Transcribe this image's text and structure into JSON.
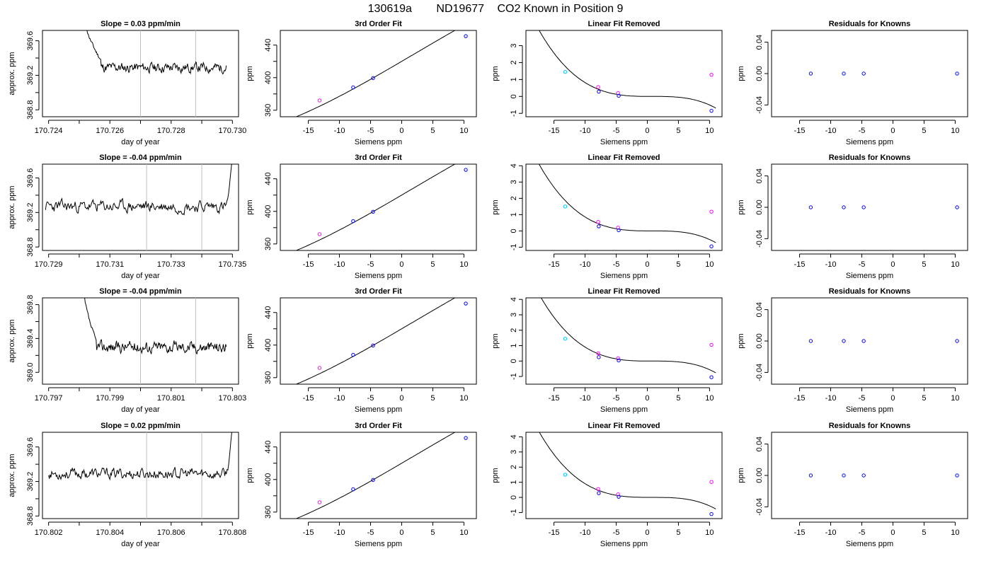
{
  "figure_title": {
    "run": "130619a",
    "tank": "ND19677",
    "label": "CO2 Known in Position  9"
  },
  "colors": {
    "line": "#000000",
    "grid_vline": "#bebebe",
    "point_blue": "#0000ff",
    "point_magenta": "#ff00ff",
    "point_cyan": "#00bfff"
  },
  "chart_data": [
    {
      "type": "line",
      "title": "Slope =  0.03  ppm/min",
      "xlabel": "day of year",
      "ylabel": "approx. ppm",
      "xlim": [
        170.7238,
        170.7302
      ],
      "ylim": [
        368.72,
        369.72
      ],
      "xticks": [
        170.724,
        170.725,
        170.726,
        170.727,
        170.728,
        170.729,
        170.73
      ],
      "xtick_labels": [
        "170.724",
        "",
        "170.726",
        "",
        "170.728",
        "",
        "170.730"
      ],
      "yticks": [
        368.8,
        369.0,
        369.2,
        369.4,
        369.6
      ],
      "ytick_labels": [
        "368.8",
        "",
        "369.2",
        "",
        "369.6"
      ],
      "vlines": [
        170.727,
        170.7288
      ],
      "series": [
        {
          "start": 170.7252,
          "end": 170.7298,
          "lead_from": 369.85,
          "lead_to": 369.38,
          "lead_frac": 0.11,
          "base": 369.29,
          "noise": 0.045,
          "seed": 11,
          "tail": 0
        }
      ]
    },
    {
      "type": "line",
      "title": "3rd Order Fit",
      "xlabel": "Siemens ppm",
      "ylabel": "ppm",
      "xlim": [
        -19.5,
        12.0
      ],
      "ylim": [
        352,
        458
      ],
      "xticks": [
        -15,
        -10,
        -5,
        0,
        5,
        10
      ],
      "xtick_labels": [
        "-15",
        "-10",
        "-5",
        "0",
        "5",
        "10"
      ],
      "yticks": [
        360,
        380,
        400,
        420,
        440
      ],
      "ytick_labels": [
        "360",
        "",
        "400",
        "",
        "440"
      ],
      "curve": {
        "from": -18,
        "to": 11,
        "coeffs": [
          420.0,
          4.48,
          0.007,
          -0.0012
        ]
      },
      "points": [
        {
          "x": -13.2,
          "y": 372.0,
          "color": "point_magenta"
        },
        {
          "x": -7.8,
          "y": 388.0,
          "color": "point_blue"
        },
        {
          "x": -4.6,
          "y": 399.5,
          "color": "point_blue"
        },
        {
          "x": 10.3,
          "y": 451.0,
          "color": "point_blue"
        }
      ]
    },
    {
      "type": "scatter",
      "title": "Linear Fit Removed",
      "xlabel": "Siemens ppm",
      "ylabel": "ppm",
      "xlim": [
        -19.5,
        12.0
      ],
      "ylim": [
        -1.2,
        3.9
      ],
      "xticks": [
        -15,
        -10,
        -5,
        0,
        5,
        10
      ],
      "xtick_labels": [
        "-15",
        "-10",
        "-5",
        "0",
        "5",
        "10"
      ],
      "yticks": [
        -1,
        0,
        1,
        2,
        3
      ],
      "ytick_labels": [
        "-1",
        "0",
        "1",
        "2",
        "3"
      ],
      "curve": {
        "from": -18,
        "to": 11,
        "coeffs": [
          0.0,
          0.0,
          0.0,
          -0.00065
        ],
        "shift": 2.3,
        "scale": 1.0
      },
      "points": [
        {
          "x": -13.2,
          "y": 1.45,
          "color": "point_cyan"
        },
        {
          "x": -7.9,
          "y": 0.55,
          "color": "point_magenta"
        },
        {
          "x": -7.8,
          "y": 0.28,
          "color": "point_blue"
        },
        {
          "x": -4.7,
          "y": 0.2,
          "color": "point_magenta"
        },
        {
          "x": -4.6,
          "y": 0.04,
          "color": "point_blue"
        },
        {
          "x": 10.3,
          "y": 1.28,
          "color": "point_magenta"
        },
        {
          "x": 10.3,
          "y": -0.85,
          "color": "point_blue"
        }
      ]
    },
    {
      "type": "scatter",
      "title": "Residuals for Knowns",
      "xlabel": "Siemens ppm",
      "ylabel": "ppm",
      "xlim": [
        -19.5,
        12.0
      ],
      "ylim": [
        -0.055,
        0.055
      ],
      "xticks": [
        -15,
        -10,
        -5,
        0,
        5,
        10
      ],
      "xtick_labels": [
        "-15",
        "-10",
        "-5",
        "0",
        "5",
        "10"
      ],
      "yticks": [
        -0.04,
        0.0,
        0.04
      ],
      "ytick_labels": [
        "-0.04",
        "0.00",
        "0.04"
      ],
      "points": [
        {
          "x": -13.2,
          "y": 0.0,
          "color": "point_blue"
        },
        {
          "x": -7.9,
          "y": 0.0,
          "color": "point_blue"
        },
        {
          "x": -4.7,
          "y": 0.0,
          "color": "point_blue"
        },
        {
          "x": 10.3,
          "y": 0.0,
          "color": "point_blue"
        }
      ]
    },
    {
      "type": "line",
      "title": "Slope =  -0.04  ppm/min",
      "xlabel": "day of year",
      "ylabel": "approx. ppm",
      "xlim": [
        170.7288,
        170.7352
      ],
      "ylim": [
        368.76,
        369.76
      ],
      "xticks": [
        170.729,
        170.73,
        170.731,
        170.732,
        170.733,
        170.734,
        170.735
      ],
      "xtick_labels": [
        "170.729",
        "",
        "170.731",
        "",
        "170.733",
        "",
        "170.735"
      ],
      "yticks": [
        368.8,
        369.0,
        369.2,
        369.4,
        369.6
      ],
      "ytick_labels": [
        "368.8",
        "",
        "369.2",
        "",
        "369.6"
      ],
      "vlines": [
        170.7322,
        170.734
      ],
      "series": [
        {
          "start": 170.7289,
          "end": 170.735,
          "lead_from": 369.29,
          "lead_to": 369.29,
          "lead_frac": 0,
          "base": 369.27,
          "noise": 0.055,
          "seed": 23,
          "tail": 369.85
        }
      ]
    },
    {
      "type": "line",
      "title": "3rd Order Fit",
      "xlabel": "Siemens ppm",
      "ylabel": "ppm",
      "xlim": [
        -19.5,
        12.0
      ],
      "ylim": [
        352,
        458
      ],
      "xticks": [
        -15,
        -10,
        -5,
        0,
        5,
        10
      ],
      "xtick_labels": [
        "-15",
        "-10",
        "-5",
        "0",
        "5",
        "10"
      ],
      "yticks": [
        360,
        380,
        400,
        420,
        440
      ],
      "ytick_labels": [
        "360",
        "",
        "400",
        "",
        "440"
      ],
      "curve": {
        "from": -18,
        "to": 11,
        "coeffs": [
          420.0,
          4.48,
          0.007,
          -0.0012
        ]
      },
      "points": [
        {
          "x": -13.2,
          "y": 372.0,
          "color": "point_magenta"
        },
        {
          "x": -7.8,
          "y": 388.0,
          "color": "point_blue"
        },
        {
          "x": -4.6,
          "y": 399.5,
          "color": "point_blue"
        },
        {
          "x": 10.3,
          "y": 451.0,
          "color": "point_blue"
        }
      ]
    },
    {
      "type": "scatter",
      "title": "Linear Fit Removed",
      "xlabel": "Siemens ppm",
      "ylabel": "ppm",
      "xlim": [
        -19.5,
        12.0
      ],
      "ylim": [
        -1.2,
        4.1
      ],
      "xticks": [
        -15,
        -10,
        -5,
        0,
        5,
        10
      ],
      "xtick_labels": [
        "-15",
        "-10",
        "-5",
        "0",
        "5",
        "10"
      ],
      "yticks": [
        -1,
        0,
        1,
        2,
        3,
        4
      ],
      "ytick_labels": [
        "-1",
        "0",
        "1",
        "2",
        "3",
        "4"
      ],
      "curve": {
        "from": -18,
        "to": 11,
        "coeffs": [
          0.0,
          0.0,
          0.0,
          -0.00068
        ],
        "shift": 2.3,
        "scale": 1.0
      },
      "points": [
        {
          "x": -13.2,
          "y": 1.5,
          "color": "point_cyan"
        },
        {
          "x": -7.9,
          "y": 0.55,
          "color": "point_magenta"
        },
        {
          "x": -7.8,
          "y": 0.28,
          "color": "point_blue"
        },
        {
          "x": -4.7,
          "y": 0.2,
          "color": "point_magenta"
        },
        {
          "x": -4.6,
          "y": 0.04,
          "color": "point_blue"
        },
        {
          "x": 10.3,
          "y": 1.18,
          "color": "point_magenta"
        },
        {
          "x": 10.3,
          "y": -0.95,
          "color": "point_blue"
        }
      ]
    },
    {
      "type": "scatter",
      "title": "Residuals for Knowns",
      "xlabel": "Siemens ppm",
      "ylabel": "ppm",
      "xlim": [
        -19.5,
        12.0
      ],
      "ylim": [
        -0.055,
        0.055
      ],
      "xticks": [
        -15,
        -10,
        -5,
        0,
        5,
        10
      ],
      "xtick_labels": [
        "-15",
        "-10",
        "-5",
        "0",
        "5",
        "10"
      ],
      "yticks": [
        -0.04,
        0.0,
        0.04
      ],
      "ytick_labels": [
        "-0.04",
        "0.00",
        "0.04"
      ],
      "points": [
        {
          "x": -13.2,
          "y": 0.0,
          "color": "point_blue"
        },
        {
          "x": -7.9,
          "y": 0.0,
          "color": "point_blue"
        },
        {
          "x": -4.7,
          "y": 0.0,
          "color": "point_blue"
        },
        {
          "x": 10.3,
          "y": 0.0,
          "color": "point_blue"
        }
      ]
    },
    {
      "type": "line",
      "title": "Slope =  -0.04  ppm/min",
      "xlabel": "day of year",
      "ylabel": "approx. ppm",
      "xlim": [
        170.7968,
        170.8032
      ],
      "ylim": [
        368.86,
        369.88
      ],
      "xticks": [
        170.797,
        170.798,
        170.799,
        170.8,
        170.801,
        170.802,
        170.803
      ],
      "xtick_labels": [
        "170.797",
        "",
        "170.799",
        "",
        "170.801",
        "",
        "170.803"
      ],
      "yticks": [
        369.0,
        369.2,
        369.4,
        369.6,
        369.8
      ],
      "ytick_labels": [
        "369.0",
        "",
        "369.4",
        "",
        "369.8"
      ],
      "vlines": [
        170.8,
        170.8018
      ],
      "series": [
        {
          "start": 170.7981,
          "end": 170.8028,
          "lead_from": 370.1,
          "lead_to": 369.35,
          "lead_frac": 0.1,
          "base": 369.3,
          "noise": 0.055,
          "seed": 37,
          "tail": 0
        }
      ]
    },
    {
      "type": "line",
      "title": "3rd Order Fit",
      "xlabel": "Siemens ppm",
      "ylabel": "ppm",
      "xlim": [
        -19.5,
        12.0
      ],
      "ylim": [
        352,
        458
      ],
      "xticks": [
        -15,
        -10,
        -5,
        0,
        5,
        10
      ],
      "xtick_labels": [
        "-15",
        "-10",
        "-5",
        "0",
        "5",
        "10"
      ],
      "yticks": [
        360,
        380,
        400,
        420,
        440
      ],
      "ytick_labels": [
        "360",
        "",
        "400",
        "",
        "440"
      ],
      "curve": {
        "from": -18,
        "to": 11,
        "coeffs": [
          420.0,
          4.48,
          0.007,
          -0.0012
        ]
      },
      "points": [
        {
          "x": -13.2,
          "y": 372.0,
          "color": "point_magenta"
        },
        {
          "x": -7.8,
          "y": 388.0,
          "color": "point_blue"
        },
        {
          "x": -4.6,
          "y": 399.5,
          "color": "point_blue"
        },
        {
          "x": 10.3,
          "y": 451.0,
          "color": "point_blue"
        }
      ]
    },
    {
      "type": "scatter",
      "title": "Linear Fit Removed",
      "xlabel": "Siemens ppm",
      "ylabel": "ppm",
      "xlim": [
        -19.5,
        12.0
      ],
      "ylim": [
        -1.5,
        4.1
      ],
      "xticks": [
        -15,
        -10,
        -5,
        0,
        5,
        10
      ],
      "xtick_labels": [
        "-15",
        "-10",
        "-5",
        "0",
        "5",
        "10"
      ],
      "yticks": [
        -1,
        0,
        1,
        2,
        3,
        4
      ],
      "ytick_labels": [
        "-1",
        "0",
        "1",
        "2",
        "3",
        "4"
      ],
      "curve": {
        "from": -18,
        "to": 11,
        "coeffs": [
          0.0,
          0.0,
          0.0,
          -0.00072
        ],
        "shift": 2.3,
        "scale": 1.0
      },
      "points": [
        {
          "x": -13.2,
          "y": 1.45,
          "color": "point_cyan"
        },
        {
          "x": -7.9,
          "y": 0.5,
          "color": "point_magenta"
        },
        {
          "x": -7.8,
          "y": 0.25,
          "color": "point_blue"
        },
        {
          "x": -4.7,
          "y": 0.18,
          "color": "point_magenta"
        },
        {
          "x": -4.6,
          "y": 0.04,
          "color": "point_blue"
        },
        {
          "x": 10.3,
          "y": 1.05,
          "color": "point_magenta"
        },
        {
          "x": 10.3,
          "y": -1.05,
          "color": "point_blue"
        }
      ]
    },
    {
      "type": "scatter",
      "title": "Residuals for Knowns",
      "xlabel": "Siemens ppm",
      "ylabel": "ppm",
      "xlim": [
        -19.5,
        12.0
      ],
      "ylim": [
        -0.055,
        0.055
      ],
      "xticks": [
        -15,
        -10,
        -5,
        0,
        5,
        10
      ],
      "xtick_labels": [
        "-15",
        "-10",
        "-5",
        "0",
        "5",
        "10"
      ],
      "yticks": [
        -0.04,
        0.0,
        0.04
      ],
      "ytick_labels": [
        "-0.04",
        "0.00",
        "0.04"
      ],
      "points": [
        {
          "x": -13.2,
          "y": 0.0,
          "color": "point_blue"
        },
        {
          "x": -7.9,
          "y": 0.0,
          "color": "point_blue"
        },
        {
          "x": -4.7,
          "y": 0.0,
          "color": "point_blue"
        },
        {
          "x": 10.3,
          "y": 0.0,
          "color": "point_blue"
        }
      ]
    },
    {
      "type": "line",
      "title": "Slope =  0.02  ppm/min",
      "xlabel": "day of year",
      "ylabel": "approx. ppm",
      "xlim": [
        170.8018,
        170.8082
      ],
      "ylim": [
        368.77,
        369.77
      ],
      "xticks": [
        170.802,
        170.803,
        170.804,
        170.805,
        170.806,
        170.807,
        170.808
      ],
      "xtick_labels": [
        "170.802",
        "",
        "170.804",
        "",
        "170.806",
        "",
        "170.808"
      ],
      "yticks": [
        368.8,
        369.0,
        369.2,
        369.4,
        369.6
      ],
      "ytick_labels": [
        "368.8",
        "",
        "369.2",
        "",
        "369.6"
      ],
      "vlines": [
        170.8052,
        170.807
      ],
      "series": [
        {
          "start": 170.802,
          "end": 170.808,
          "lead_from": 369.3,
          "lead_to": 369.3,
          "lead_frac": 0,
          "base": 369.29,
          "noise": 0.05,
          "seed": 53,
          "tail": 369.85
        }
      ]
    },
    {
      "type": "line",
      "title": "3rd Order Fit",
      "xlabel": "Siemens ppm",
      "ylabel": "ppm",
      "xlim": [
        -19.5,
        12.0
      ],
      "ylim": [
        352,
        458
      ],
      "xticks": [
        -15,
        -10,
        -5,
        0,
        5,
        10
      ],
      "xtick_labels": [
        "-15",
        "-10",
        "-5",
        "0",
        "5",
        "10"
      ],
      "yticks": [
        360,
        380,
        400,
        420,
        440
      ],
      "ytick_labels": [
        "360",
        "",
        "400",
        "",
        "440"
      ],
      "curve": {
        "from": -18,
        "to": 11,
        "coeffs": [
          420.0,
          4.48,
          0.007,
          -0.0012
        ]
      },
      "points": [
        {
          "x": -13.2,
          "y": 372.0,
          "color": "point_magenta"
        },
        {
          "x": -7.8,
          "y": 388.0,
          "color": "point_blue"
        },
        {
          "x": -4.6,
          "y": 399.5,
          "color": "point_blue"
        },
        {
          "x": 10.3,
          "y": 451.0,
          "color": "point_blue"
        }
      ]
    },
    {
      "type": "scatter",
      "title": "Linear Fit Removed",
      "xlabel": "Siemens ppm",
      "ylabel": "ppm",
      "xlim": [
        -19.5,
        12.0
      ],
      "ylim": [
        -1.4,
        4.3
      ],
      "xticks": [
        -15,
        -10,
        -5,
        0,
        5,
        10
      ],
      "xtick_labels": [
        "-15",
        "-10",
        "-5",
        "0",
        "5",
        "10"
      ],
      "yticks": [
        -1,
        0,
        1,
        2,
        3,
        4
      ],
      "ytick_labels": [
        "-1",
        "0",
        "1",
        "2",
        "3",
        "4"
      ],
      "curve": {
        "from": -18,
        "to": 11,
        "coeffs": [
          0.0,
          0.0,
          0.0,
          -0.00072
        ],
        "shift": 2.3,
        "scale": 1.0
      },
      "points": [
        {
          "x": -13.2,
          "y": 1.5,
          "color": "point_cyan"
        },
        {
          "x": -7.9,
          "y": 0.55,
          "color": "point_magenta"
        },
        {
          "x": -7.8,
          "y": 0.28,
          "color": "point_blue"
        },
        {
          "x": -4.7,
          "y": 0.2,
          "color": "point_magenta"
        },
        {
          "x": -4.6,
          "y": 0.04,
          "color": "point_blue"
        },
        {
          "x": 10.3,
          "y": 1.02,
          "color": "point_magenta"
        },
        {
          "x": 10.3,
          "y": -1.1,
          "color": "point_blue"
        }
      ]
    },
    {
      "type": "scatter",
      "title": "Residuals for Knowns",
      "xlabel": "Siemens ppm",
      "ylabel": "ppm",
      "xlim": [
        -19.5,
        12.0
      ],
      "ylim": [
        -0.055,
        0.055
      ],
      "xticks": [
        -15,
        -10,
        -5,
        0,
        5,
        10
      ],
      "xtick_labels": [
        "-15",
        "-10",
        "-5",
        "0",
        "5",
        "10"
      ],
      "yticks": [
        -0.04,
        0.0,
        0.04
      ],
      "ytick_labels": [
        "-0.04",
        "0.00",
        "0.04"
      ],
      "points": [
        {
          "x": -13.2,
          "y": 0.0,
          "color": "point_blue"
        },
        {
          "x": -7.9,
          "y": 0.0,
          "color": "point_blue"
        },
        {
          "x": -4.7,
          "y": 0.0,
          "color": "point_blue"
        },
        {
          "x": 10.3,
          "y": 0.0,
          "color": "point_blue"
        }
      ]
    }
  ]
}
